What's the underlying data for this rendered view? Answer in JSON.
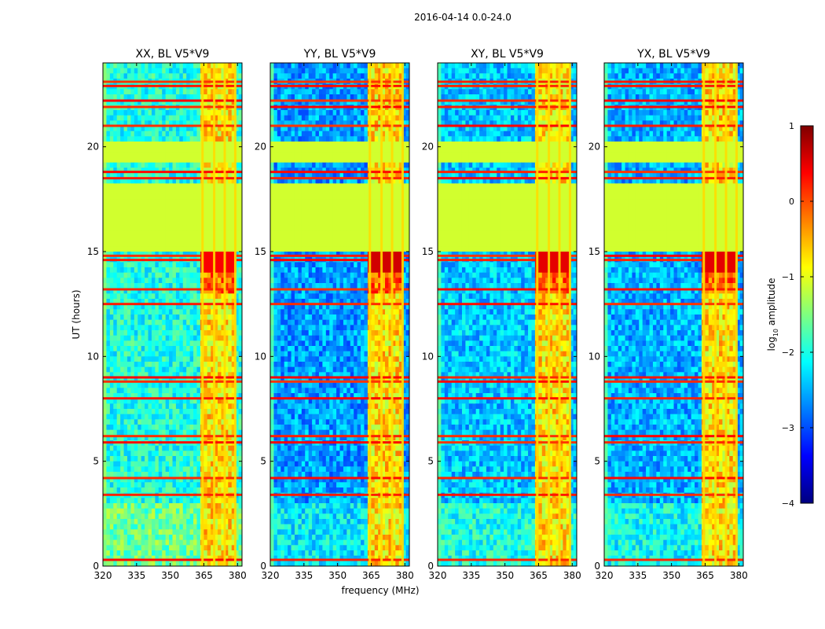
{
  "chart_data": {
    "type": "heatmap",
    "suptitle": "2016-04-14 0.0-24.0",
    "xlabel": "frequency (MHz)",
    "ylabel": "UT (hours)",
    "xlim": [
      320,
      382
    ],
    "ylim": [
      0,
      24
    ],
    "xticks": [
      320,
      335,
      350,
      365,
      380
    ],
    "yticks": [
      0,
      5,
      10,
      15,
      20
    ],
    "colorbar": {
      "label": "log",
      "label_sub": "10",
      "label_rest": " amplitude",
      "ticks": [
        1,
        0,
        -1,
        -2,
        -3,
        -4
      ],
      "tick_labels": [
        "1",
        "0",
        "−1",
        "−2",
        "−3",
        "−4"
      ],
      "vmin": -4,
      "vmax": 1,
      "stops": [
        "#00007f",
        "#0000ff",
        "#007fff",
        "#00ffff",
        "#7fff7f",
        "#ffff00",
        "#ff7f00",
        "#ff0000",
        "#7f0000"
      ]
    },
    "panels": [
      {
        "title": "XX, BL V5*V9",
        "noise": -2.0,
        "edge_band": -1.6,
        "burst": 0.4
      },
      {
        "title": "YY, BL V5*V9",
        "noise": -2.6,
        "edge_band": -1.9,
        "burst": 0.6
      },
      {
        "title": "XY, BL V5*V9",
        "noise": -2.4,
        "edge_band": -1.9,
        "burst": 0.5
      },
      {
        "title": "YX, BL V5*V9",
        "noise": -2.5,
        "edge_band": -1.9,
        "burst": 0.5
      }
    ],
    "flagged_ut_ranges": [
      [
        15.0,
        18.3
      ],
      [
        19.2,
        20.3
      ]
    ],
    "flag_value": -1.1,
    "active_freq_range_mhz": [
      363.5,
      379.5
    ],
    "rfi_channels_mhz": [
      364.4,
      369.6,
      374.3,
      379.0
    ],
    "rfi_lines_ut": [
      0.3,
      3.4,
      4.2,
      5.9,
      6.2,
      8.0,
      8.8,
      9.0,
      12.5,
      13.2,
      14.6,
      14.8,
      18.5,
      18.8,
      21.0,
      21.9,
      22.2,
      22.9,
      23.1
    ]
  }
}
